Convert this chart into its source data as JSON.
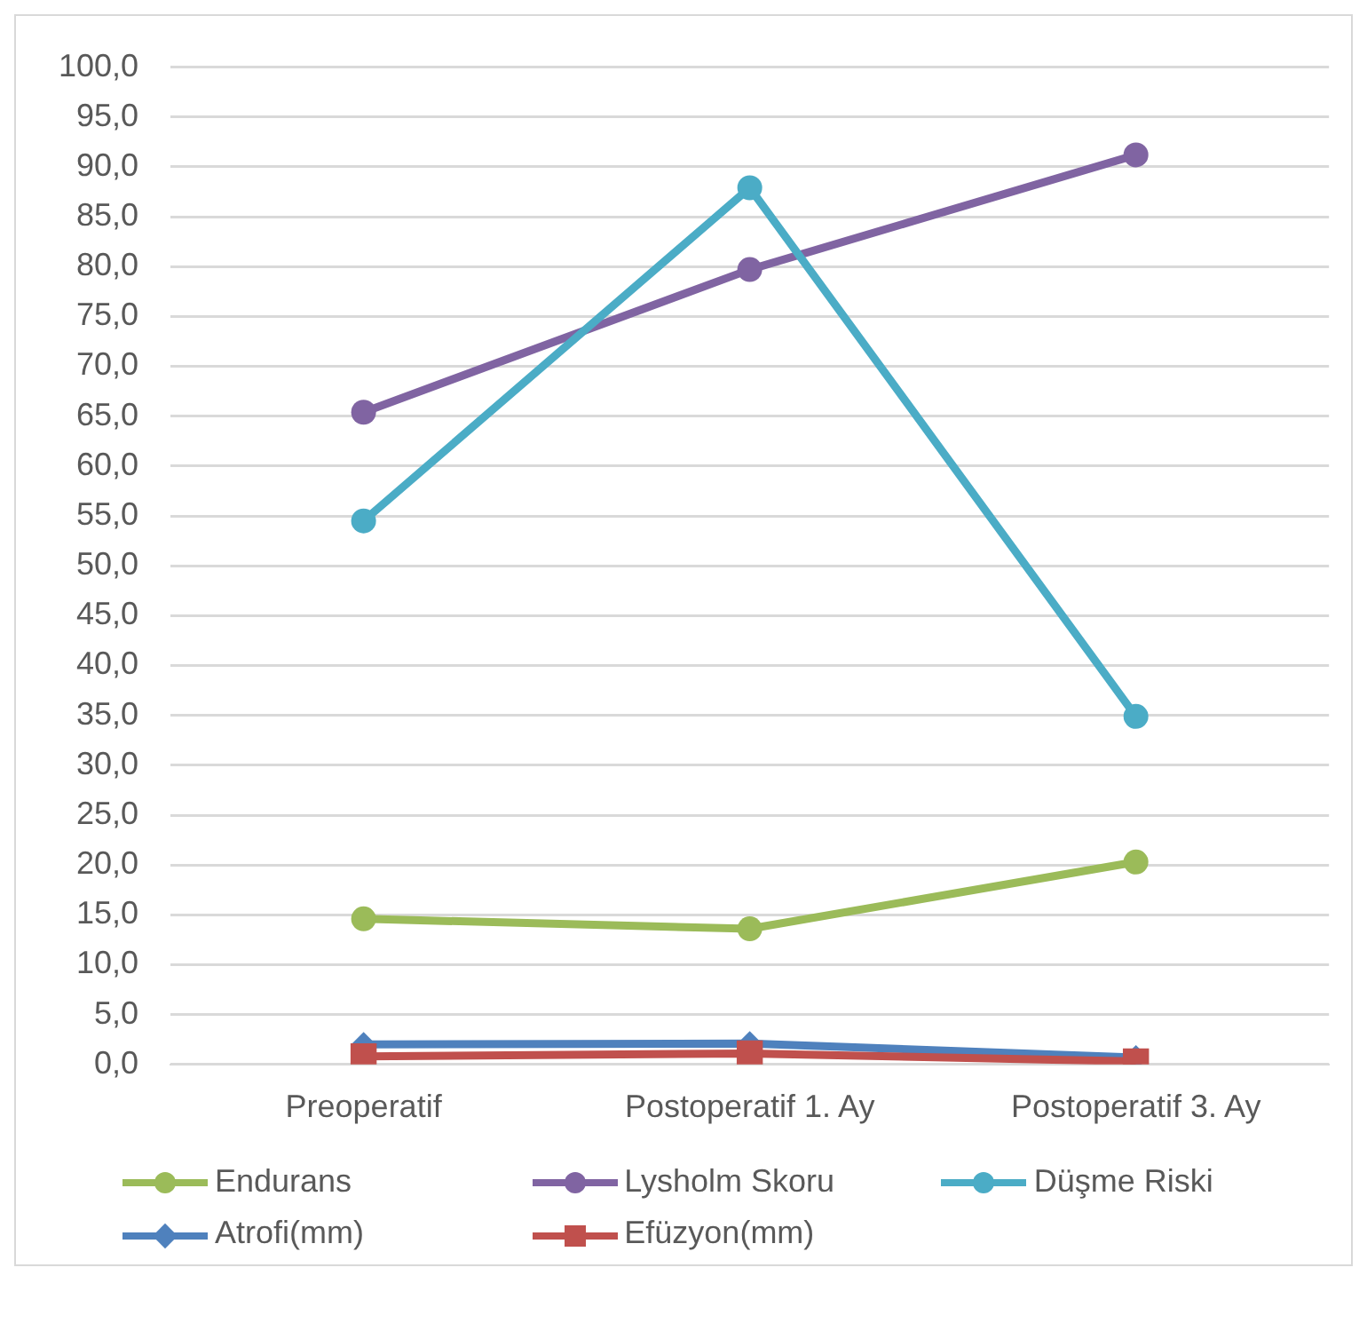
{
  "chart_data": {
    "type": "line",
    "categories": [
      "Preoperatif",
      "Postoperatif 1. Ay",
      "Postoperatif 3. Ay"
    ],
    "series": [
      {
        "name": "Endurans",
        "color": "#9bbb59",
        "marker": "circle",
        "values": [
          14.6,
          13.6,
          20.3
        ]
      },
      {
        "name": "Lysholm Skoru",
        "color": "#8064a2",
        "marker": "circle",
        "values": [
          65.4,
          79.7,
          91.2
        ]
      },
      {
        "name": "Düşme Riski",
        "color": "#4bacc6",
        "marker": "circle",
        "values": [
          54.5,
          87.9,
          34.9
        ]
      },
      {
        "name": "Atrofi(mm)",
        "color": "#4f81bd",
        "marker": "diamond",
        "values": [
          2.0,
          2.1,
          0.7
        ]
      },
      {
        "name": "Efüzyon(mm)",
        "color": "#c0504d",
        "marker": "square",
        "values": [
          0.8,
          1.1,
          0.3
        ]
      }
    ],
    "ylim": [
      0,
      100
    ],
    "yticks": [
      {
        "value": 0,
        "label": "0,0"
      },
      {
        "value": 5,
        "label": "5,0"
      },
      {
        "value": 10,
        "label": "10,0"
      },
      {
        "value": 15,
        "label": "15,0"
      },
      {
        "value": 20,
        "label": "20,0"
      },
      {
        "value": 25,
        "label": "25,0"
      },
      {
        "value": 30,
        "label": "30,0"
      },
      {
        "value": 35,
        "label": "35,0"
      },
      {
        "value": 40,
        "label": "40,0"
      },
      {
        "value": 45,
        "label": "45,0"
      },
      {
        "value": 50,
        "label": "50,0"
      },
      {
        "value": 55,
        "label": "55,0"
      },
      {
        "value": 60,
        "label": "60,0"
      },
      {
        "value": 65,
        "label": "65,0"
      },
      {
        "value": 70,
        "label": "70,0"
      },
      {
        "value": 75,
        "label": "75,0"
      },
      {
        "value": 80,
        "label": "80,0"
      },
      {
        "value": 85,
        "label": "85,0"
      },
      {
        "value": 90,
        "label": "90,0"
      },
      {
        "value": 95,
        "label": "95,0"
      },
      {
        "value": 100,
        "label": "100,0"
      }
    ],
    "grid": "y",
    "legend": "bottom"
  }
}
